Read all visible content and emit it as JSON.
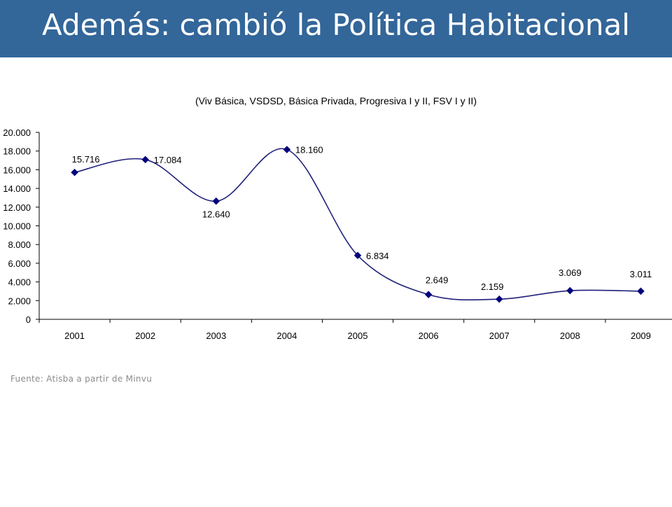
{
  "header": {
    "title": "Además: cambió la Política Habitacional"
  },
  "footer": {
    "source": "Fuente: Atisba a partir de Minvu"
  },
  "colors": {
    "header_bg": "#336699",
    "series": "#1f1f7a",
    "marker": "#000080"
  },
  "chart_data": {
    "type": "line",
    "title": "(Viv Básica, VSDSD, Básica Privada, Progresiva I y II, FSV I y II)",
    "categories": [
      "2001",
      "2002",
      "2003",
      "2004",
      "2005",
      "2006",
      "2007",
      "2008",
      "2009"
    ],
    "series": [
      {
        "values": [
          15716,
          17084,
          12640,
          18160,
          6834,
          2649,
          2159,
          3069,
          3011
        ],
        "labels": [
          "15.716",
          "17.084",
          "12.640",
          "18.160",
          "6.834",
          "2.649",
          "2.159",
          "3.069",
          "3.011"
        ]
      }
    ],
    "yticks": [
      "0",
      "2.000",
      "4.000",
      "6.000",
      "8.000",
      "10.000",
      "12.000",
      "14.000",
      "16.000",
      "18.000",
      "20.000"
    ],
    "ylim": [
      0,
      20000
    ],
    "grid": false,
    "smooth": true,
    "marker": "diamond"
  }
}
